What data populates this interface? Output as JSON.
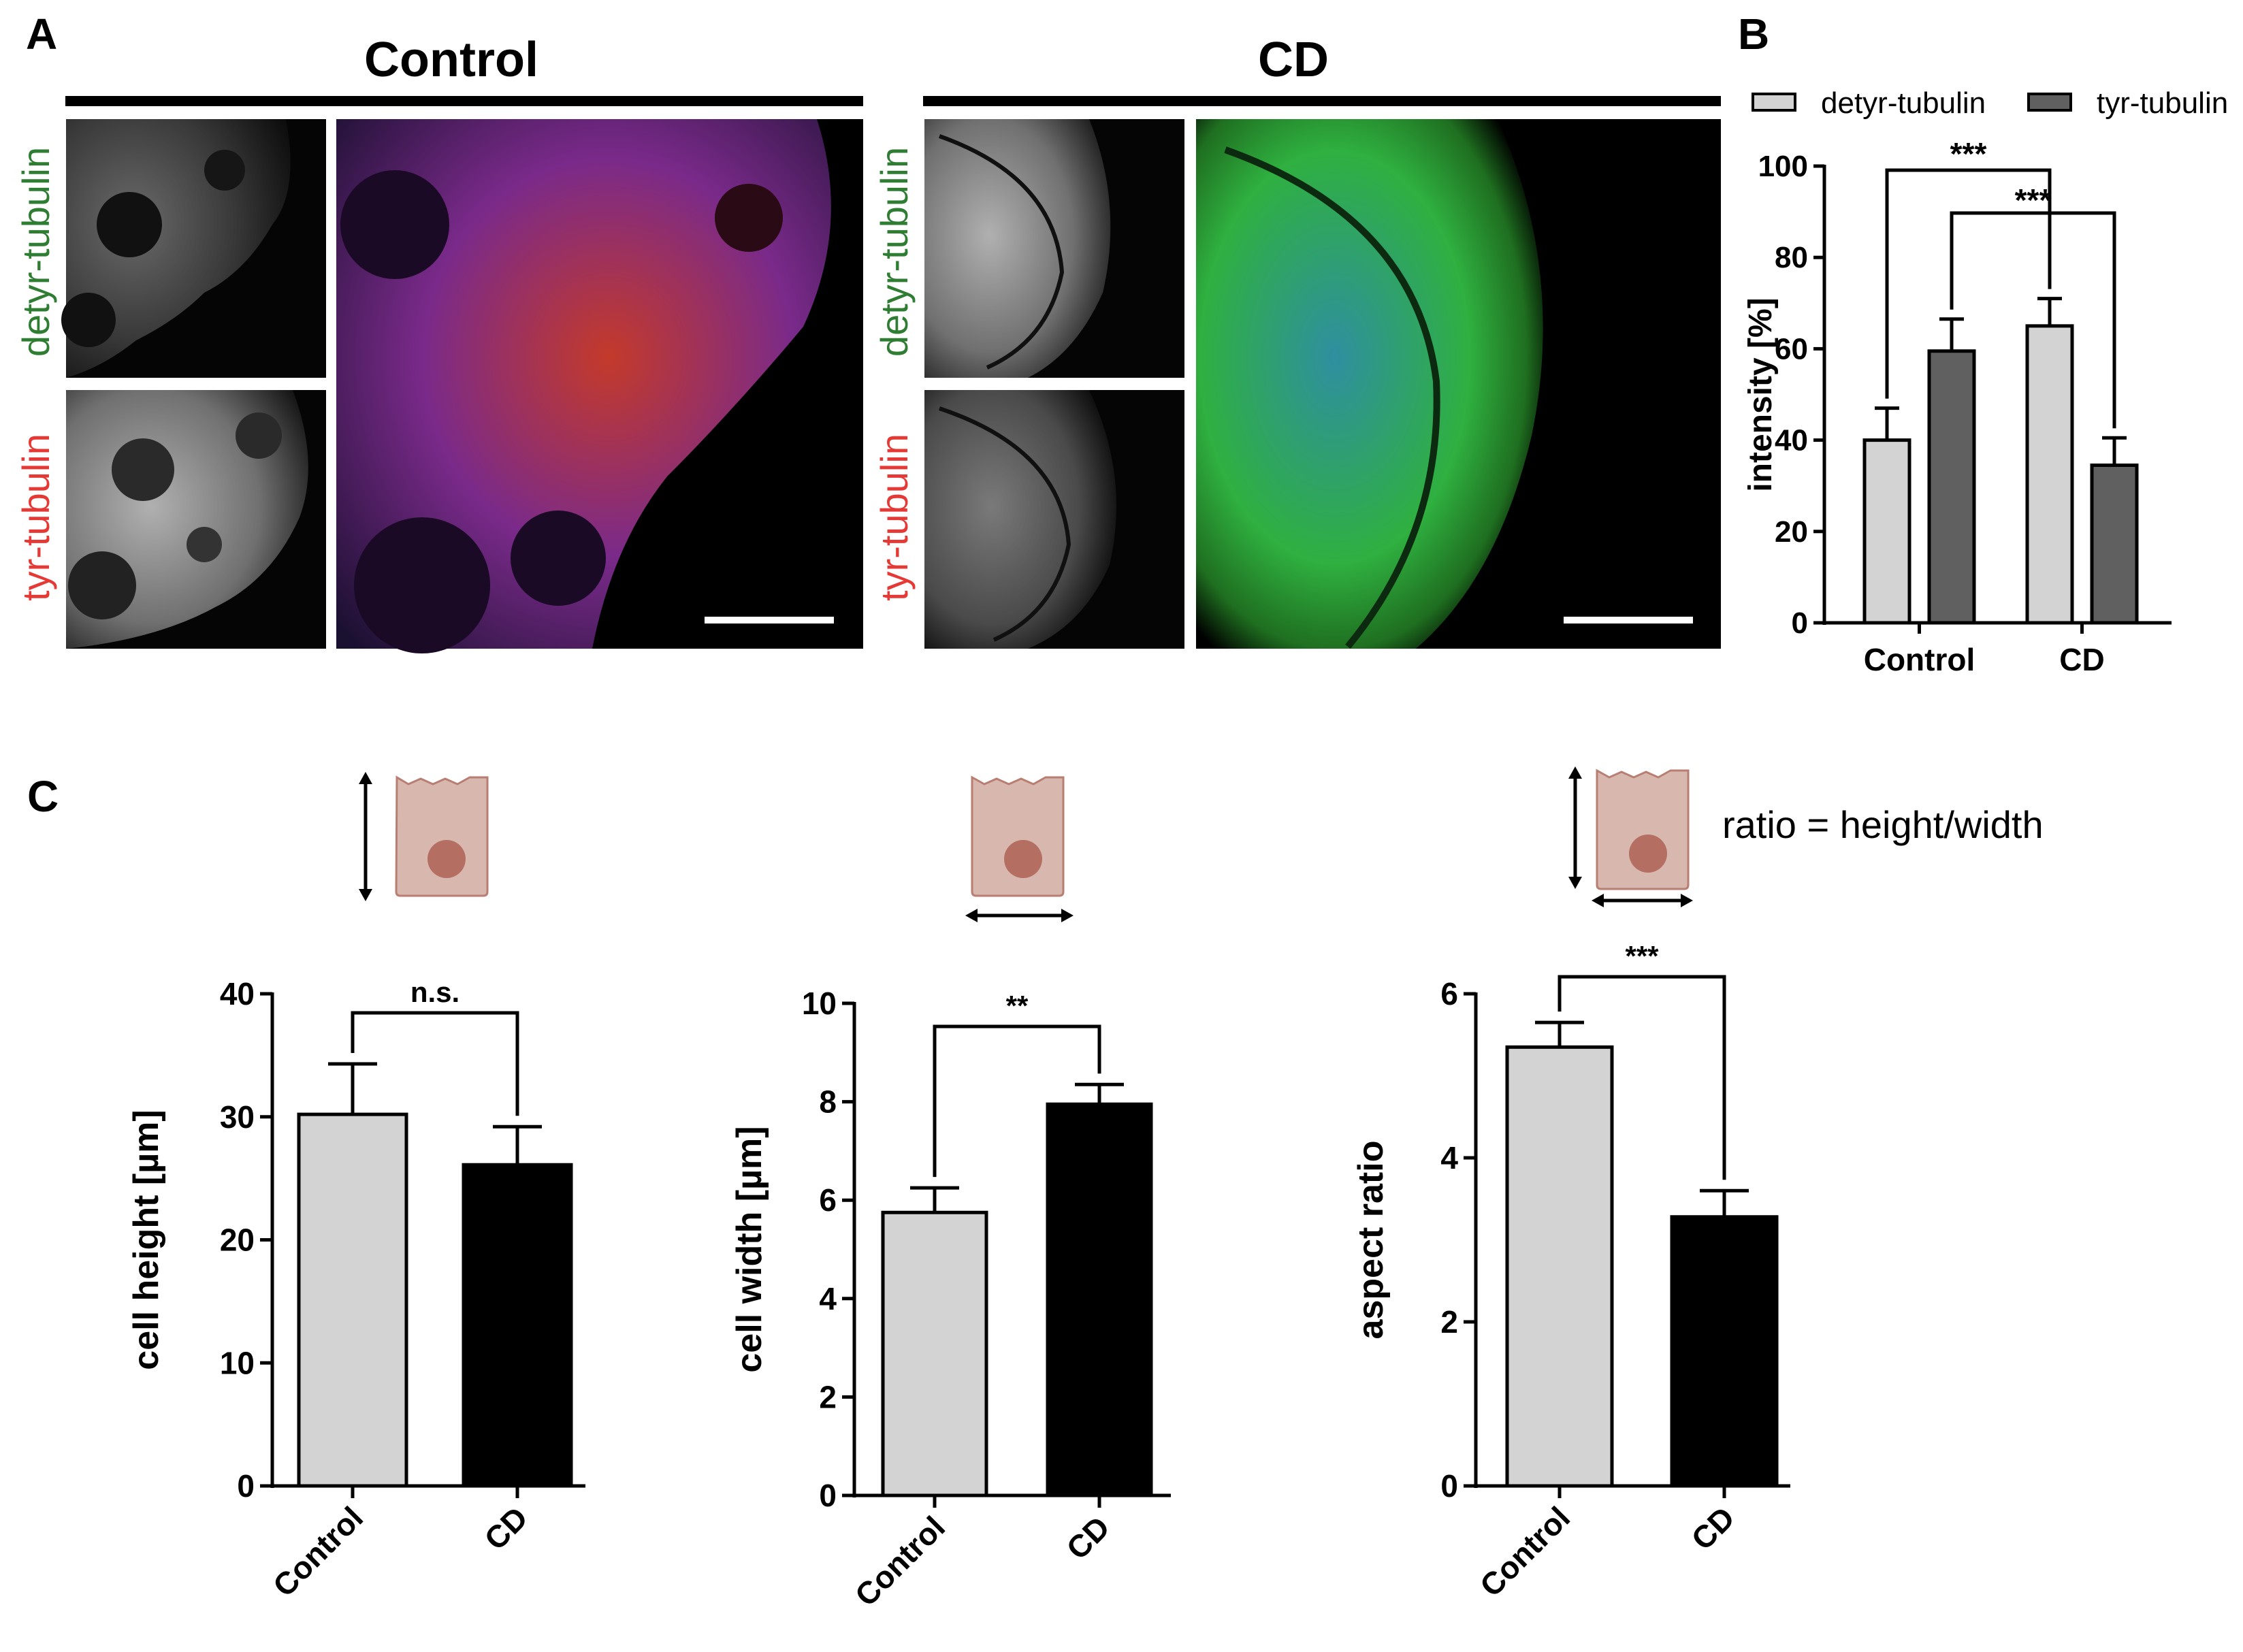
{
  "panel_a": {
    "letter": "A",
    "control_title": "Control",
    "cd_title": "CD",
    "channel_green": "detyr-tubulin",
    "channel_red": "tyr-tubulin",
    "colors": {
      "green_label": "#2e7d32",
      "red_label": "#e53935",
      "merge_red": "#e2401c",
      "merge_blue": "#2a4bd0",
      "merge_green": "#2fb52f"
    }
  },
  "panel_b": {
    "letter": "B",
    "significance": [
      "***",
      "***"
    ]
  },
  "panel_c": {
    "letter": "C",
    "ratio_formula": "ratio = height/width",
    "significance": [
      "n.s.",
      "**",
      "***"
    ]
  },
  "colors": {
    "light_gray": "#d3d3d3",
    "dark_gray": "#606060",
    "black": "#000000",
    "cell_fill": "#d8b8ae",
    "cell_stroke": "#b87e72",
    "nucleus": "#b46e62"
  },
  "chart_data": [
    {
      "id": "B",
      "type": "bar",
      "categories": [
        "Control",
        "CD"
      ],
      "series": [
        {
          "name": "detyr-tubulin",
          "values": [
            40,
            65
          ],
          "errors": [
            7,
            6
          ],
          "color": "#d3d3d3"
        },
        {
          "name": "tyr-tubulin",
          "values": [
            59.5,
            34.5
          ],
          "errors": [
            7,
            6
          ],
          "color": "#606060"
        }
      ],
      "ylabel": "intensity [%]",
      "ylim": [
        0,
        100
      ],
      "yticks": [
        0,
        20,
        40,
        60,
        80,
        100
      ],
      "legend_position": "top"
    },
    {
      "id": "C1",
      "type": "bar",
      "categories": [
        "Control",
        "CD"
      ],
      "values": [
        30.2,
        26.1
      ],
      "errors": [
        4.1,
        3.1
      ],
      "colors": [
        "#d3d3d3",
        "#000000"
      ],
      "ylabel": "cell height [µm]",
      "ylim": [
        0,
        40
      ],
      "yticks": [
        0,
        10,
        20,
        30,
        40
      ]
    },
    {
      "id": "C2",
      "type": "bar",
      "categories": [
        "Control",
        "CD"
      ],
      "values": [
        5.75,
        7.95
      ],
      "errors": [
        0.5,
        0.4
      ],
      "colors": [
        "#d3d3d3",
        "#000000"
      ],
      "ylabel": "cell width [µm]",
      "ylim": [
        0,
        10
      ],
      "yticks": [
        0,
        2,
        4,
        6,
        8,
        10
      ]
    },
    {
      "id": "C3",
      "type": "bar",
      "categories": [
        "Control",
        "CD"
      ],
      "values": [
        5.35,
        3.28
      ],
      "errors": [
        0.3,
        0.32
      ],
      "colors": [
        "#d3d3d3",
        "#000000"
      ],
      "ylabel": "aspect ratio",
      "ylim": [
        0,
        6
      ],
      "yticks": [
        0,
        2,
        4,
        6
      ]
    }
  ]
}
